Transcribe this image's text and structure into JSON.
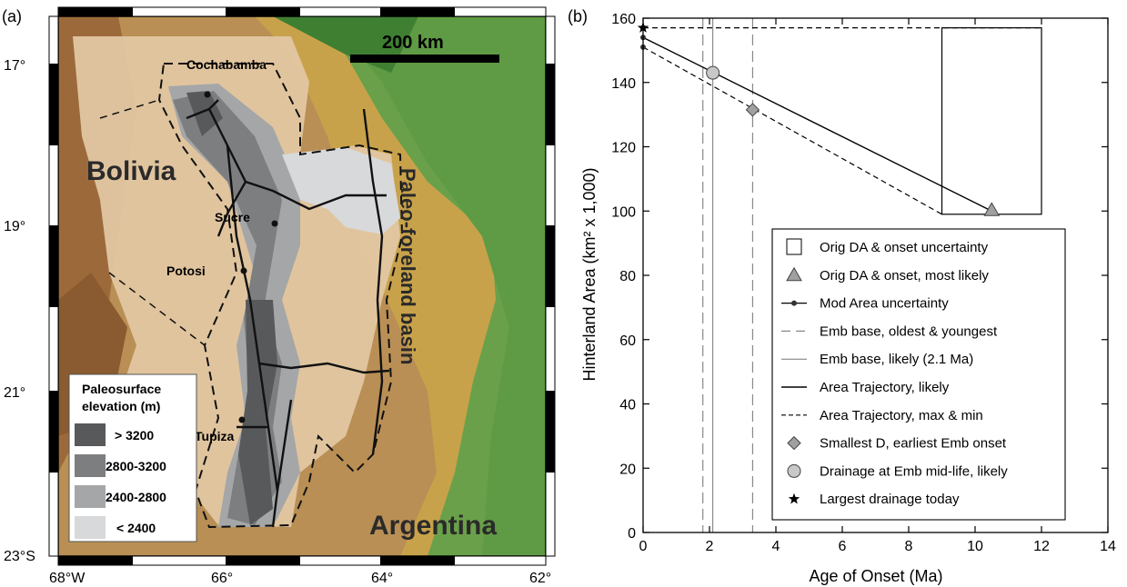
{
  "panel_a": {
    "label": "(a)",
    "scale_label": "200 km",
    "places": [
      {
        "name": "Cochabamba"
      },
      {
        "name": "Sucre"
      },
      {
        "name": "Potosi"
      },
      {
        "name": "Tupiza"
      }
    ],
    "countries": [
      "Bolivia",
      "Argentina"
    ],
    "basin_label": "Paleo-foreland basin",
    "lat_ticks": [
      "17°",
      "19°",
      "21°",
      "23°S"
    ],
    "lon_ticks": [
      "68°W",
      "66°",
      "64°",
      "62°"
    ],
    "legend": {
      "title_line1": "Paleosurface",
      "title_line2": "elevation (m)",
      "items": [
        {
          "label": "> 3200",
          "color": "#58595b"
        },
        {
          "label": "2800-3200",
          "color": "#7d7e80"
        },
        {
          "label": "2400-2800",
          "color": "#a5a6a8"
        },
        {
          "label": "< 2400",
          "color": "#d8d9db"
        }
      ]
    },
    "colors": {
      "lowland": "#6aa04a",
      "andes_base": "#9c6a3a",
      "paleosurface": "#e2c7a2"
    }
  },
  "panel_b": {
    "label": "(b)",
    "chart_data": {
      "type": "scatter",
      "xlabel": "Age of Onset (Ma)",
      "ylabel": "Hinterland Area (km² x 1,000)",
      "xlim": [
        0,
        14
      ],
      "ylim": [
        0,
        160
      ],
      "xticks": [
        0,
        2,
        4,
        6,
        8,
        10,
        12,
        14
      ],
      "yticks": [
        0,
        20,
        40,
        60,
        80,
        100,
        120,
        140,
        160
      ],
      "uncertainty_box": {
        "x": [
          9,
          12
        ],
        "y": [
          99,
          157
        ]
      },
      "orig_most_likely": {
        "x": 10.5,
        "y": 100
      },
      "mod_area_uncertainty": [
        {
          "x": 0,
          "y": 151
        },
        {
          "x": 0,
          "y": 154
        },
        {
          "x": 0,
          "y": 157
        }
      ],
      "emb_base_oldest_youngest": [
        1.8,
        3.3
      ],
      "emb_base_likely": 2.1,
      "trajectory_likely": [
        {
          "x": 0,
          "y": 154
        },
        {
          "x": 10.5,
          "y": 100
        }
      ],
      "trajectory_max": [
        {
          "x": 0,
          "y": 157
        },
        {
          "x": 12,
          "y": 157
        }
      ],
      "trajectory_min": [
        {
          "x": 0,
          "y": 151
        },
        {
          "x": 9,
          "y": 99
        }
      ],
      "smallest_d_earliest": {
        "x": 3.3,
        "y": 131.5
      },
      "drainage_mid_life": {
        "x": 2.1,
        "y": 143
      },
      "largest_drainage_today": {
        "x": 0,
        "y": 157
      },
      "legend_position": "lower-right",
      "legend": [
        {
          "key": "box",
          "label": "Orig DA & onset uncertainty"
        },
        {
          "key": "triangle",
          "label": "Orig DA & onset, most likely"
        },
        {
          "key": "dotline",
          "label": "Mod Area uncertainty"
        },
        {
          "key": "longdash",
          "label": "Emb base, oldest & youngest"
        },
        {
          "key": "thinline",
          "label": "Emb base, likely (2.1 Ma)"
        },
        {
          "key": "solid",
          "label": "Area Trajectory, likely"
        },
        {
          "key": "shortdash",
          "label": "Area Trajectory, max & min"
        },
        {
          "key": "diamond",
          "label": "Smallest D, earliest Emb onset"
        },
        {
          "key": "circle",
          "label": "Drainage at Emb mid-life, likely"
        },
        {
          "key": "star",
          "label": "Largest drainage today"
        }
      ]
    }
  }
}
